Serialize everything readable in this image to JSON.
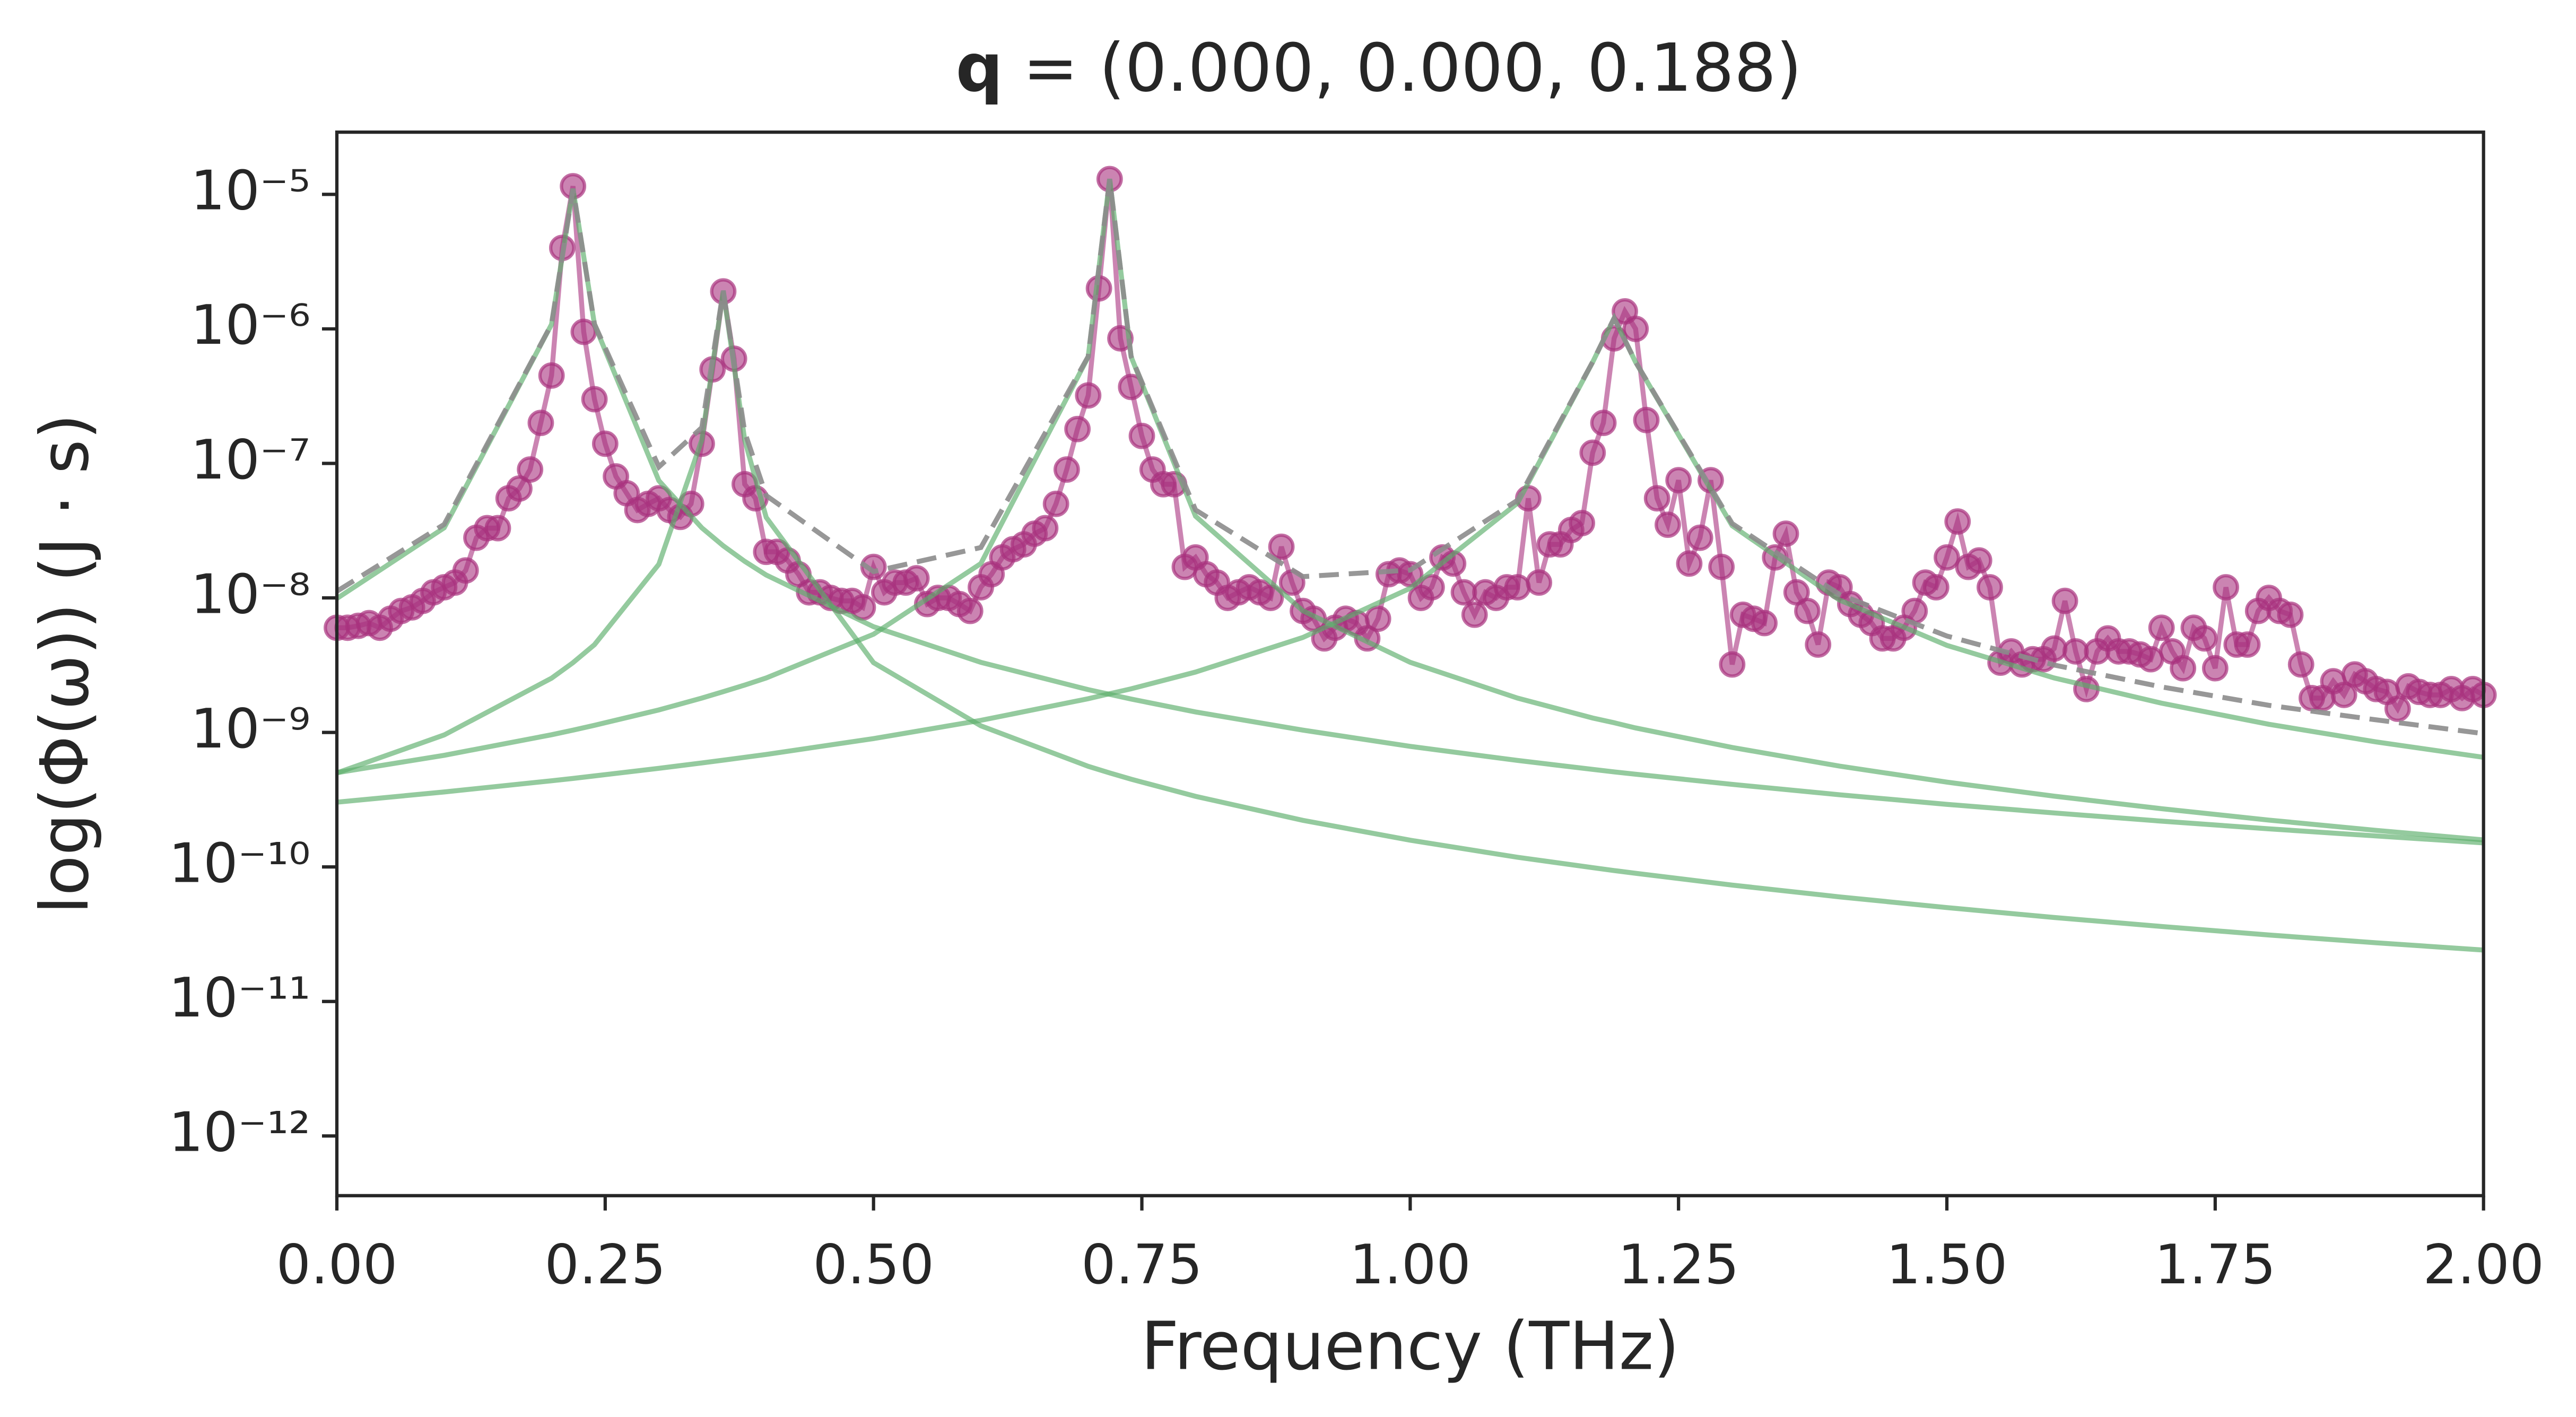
{
  "chart_data": {
    "type": "line",
    "title_symbol": "q",
    "title": "= (0.000, 0.000, 0.188)",
    "x_label": "Frequency (THz)",
    "y_label": "log(Φ(ω)) (J · s)",
    "y_scale": "log",
    "grid": false,
    "xlim": [
      0,
      2
    ],
    "ylim": [
      3.6e-13,
      2.9e-05
    ],
    "xticks": [
      {
        "value": 0,
        "label": "0.00"
      },
      {
        "value": 0.25,
        "label": "0.25"
      },
      {
        "value": 0.5,
        "label": "0.50"
      },
      {
        "value": 0.75,
        "label": "0.75"
      },
      {
        "value": 1,
        "label": "1.00"
      },
      {
        "value": 1.25,
        "label": "1.25"
      },
      {
        "value": 1.5,
        "label": "1.50"
      },
      {
        "value": 1.75,
        "label": "1.75"
      },
      {
        "value": 2,
        "label": "2.00"
      }
    ],
    "yticks": [
      {
        "value": 1e-12,
        "label": "10⁻¹²"
      },
      {
        "value": 1e-11,
        "label": "10⁻¹¹"
      },
      {
        "value": 1e-10,
        "label": "10⁻¹⁰"
      },
      {
        "value": 1e-09,
        "label": "10⁻⁹"
      },
      {
        "value": 1e-08,
        "label": "10⁻⁸"
      },
      {
        "value": 1e-07,
        "label": "10⁻⁷"
      },
      {
        "value": 1e-06,
        "label": "10⁻⁶"
      },
      {
        "value": 1e-05,
        "label": "10⁻⁵"
      }
    ],
    "series": [
      {
        "style": "line-markers",
        "color": "#a8327e",
        "x": [
          0,
          0.01,
          0.02,
          0.03,
          0.04,
          0.05,
          0.06,
          0.07,
          0.08,
          0.09,
          0.1,
          0.11,
          0.12,
          0.13,
          0.14,
          0.15,
          0.16,
          0.17,
          0.18,
          0.19,
          0.2,
          0.21,
          0.22,
          0.23,
          0.24,
          0.25,
          0.26,
          0.27,
          0.28,
          0.29,
          0.3,
          0.31,
          0.32,
          0.33,
          0.34,
          0.35,
          0.36,
          0.37,
          0.38,
          0.39,
          0.4,
          0.41,
          0.42,
          0.43,
          0.44,
          0.45,
          0.46,
          0.47,
          0.48,
          0.49,
          0.5,
          0.51,
          0.52,
          0.53,
          0.54,
          0.55,
          0.56,
          0.57,
          0.58,
          0.59,
          0.6,
          0.61,
          0.62,
          0.63,
          0.64,
          0.65,
          0.66,
          0.67,
          0.68,
          0.69,
          0.7,
          0.71,
          0.72,
          0.73,
          0.74,
          0.75,
          0.76,
          0.77,
          0.78,
          0.79,
          0.8,
          0.81,
          0.82,
          0.83,
          0.84,
          0.85,
          0.86,
          0.87,
          0.88,
          0.89,
          0.9,
          0.91,
          0.92,
          0.93,
          0.94,
          0.95,
          0.96,
          0.97,
          0.98,
          0.99,
          1,
          1.01,
          1.02,
          1.03,
          1.04,
          1.05,
          1.06,
          1.07,
          1.08,
          1.09,
          1.1,
          1.11,
          1.12,
          1.13,
          1.14,
          1.15,
          1.16,
          1.17,
          1.18,
          1.19,
          1.2,
          1.21,
          1.22,
          1.23,
          1.24,
          1.25,
          1.26,
          1.27,
          1.28,
          1.29,
          1.3,
          1.31,
          1.32,
          1.33,
          1.34,
          1.35,
          1.36,
          1.37,
          1.38,
          1.39,
          1.4,
          1.41,
          1.42,
          1.43,
          1.44,
          1.45,
          1.46,
          1.47,
          1.48,
          1.49,
          1.5,
          1.51,
          1.52,
          1.53,
          1.54,
          1.55,
          1.56,
          1.57,
          1.58,
          1.59,
          1.6,
          1.61,
          1.62,
          1.63,
          1.64,
          1.65,
          1.66,
          1.67,
          1.68,
          1.69,
          1.7,
          1.71,
          1.72,
          1.73,
          1.74,
          1.75,
          1.76,
          1.77,
          1.78,
          1.79,
          1.8,
          1.81,
          1.82,
          1.83,
          1.84,
          1.85,
          1.86,
          1.87,
          1.88,
          1.89,
          1.9,
          1.91,
          1.92,
          1.93,
          1.94,
          1.95,
          1.96,
          1.97,
          1.98,
          1.99,
          2
        ],
        "values": [
          6e-09,
          6e-09,
          6.2e-09,
          6.5e-09,
          6e-09,
          7e-09,
          8e-09,
          8.5e-09,
          9.5e-09,
          1.1e-08,
          1.2e-08,
          1.3e-08,
          1.6e-08,
          2.8e-08,
          3.3e-08,
          3.3e-08,
          5.5e-08,
          6.5e-08,
          9e-08,
          2e-07,
          4.5e-07,
          4e-06,
          1.15e-05,
          9.5e-07,
          3e-07,
          1.4e-07,
          8e-08,
          6e-08,
          4.5e-08,
          5e-08,
          5.5e-08,
          4.5e-08,
          4e-08,
          5e-08,
          1.4e-07,
          5e-07,
          1.9e-06,
          6e-07,
          7e-08,
          5.5e-08,
          2.2e-08,
          2.2e-08,
          1.9e-08,
          1.5e-08,
          1.1e-08,
          1.1e-08,
          1e-08,
          9.5e-09,
          9.5e-09,
          8.5e-09,
          1.7e-08,
          1.1e-08,
          1.3e-08,
          1.3e-08,
          1.4e-08,
          9e-09,
          1e-08,
          1e-08,
          9e-09,
          8e-09,
          1.2e-08,
          1.5e-08,
          2e-08,
          2.3e-08,
          2.5e-08,
          3e-08,
          3.3e-08,
          5e-08,
          9e-08,
          1.8e-07,
          3.2e-07,
          2e-06,
          1.3e-05,
          8.5e-07,
          3.7e-07,
          1.6e-07,
          9e-08,
          7e-08,
          7e-08,
          1.7e-08,
          2e-08,
          1.5e-08,
          1.3e-08,
          1e-08,
          1.1e-08,
          1.2e-08,
          1.1e-08,
          1e-08,
          2.4e-08,
          1.3e-08,
          8e-09,
          7e-09,
          5e-09,
          6e-09,
          7e-09,
          6.5e-09,
          5e-09,
          7e-09,
          1.5e-08,
          1.6e-08,
          1.5e-08,
          1e-08,
          1.2e-08,
          2e-08,
          1.8e-08,
          1.1e-08,
          7.5e-09,
          1.1e-08,
          1e-08,
          1.2e-08,
          1.2e-08,
          5.5e-08,
          1.3e-08,
          2.5e-08,
          2.5e-08,
          3.2e-08,
          3.6e-08,
          1.2e-07,
          2e-07,
          8.5e-07,
          1.35e-06,
          1e-06,
          2.1e-07,
          5.5e-08,
          3.5e-08,
          7.5e-08,
          1.8e-08,
          2.8e-08,
          7.5e-08,
          1.7e-08,
          3.2e-09,
          7.5e-09,
          7e-09,
          6.5e-09,
          2e-08,
          3e-08,
          1.1e-08,
          8e-09,
          4.5e-09,
          1.3e-08,
          1.2e-08,
          9e-09,
          7.5e-09,
          6.5e-09,
          5e-09,
          5e-09,
          6e-09,
          8e-09,
          1.3e-08,
          1.2e-08,
          2e-08,
          3.7e-08,
          1.7e-08,
          1.9e-08,
          1.2e-08,
          3.3e-09,
          4e-09,
          3.2e-09,
          3.5e-09,
          3.5e-09,
          4.2e-09,
          9.5e-09,
          4e-09,
          2.1e-09,
          4e-09,
          5e-09,
          4e-09,
          4e-09,
          3.8e-09,
          3.5e-09,
          6e-09,
          4e-09,
          3e-09,
          6e-09,
          5e-09,
          3e-09,
          1.2e-08,
          4.5e-09,
          4.5e-09,
          8e-09,
          1e-08,
          8e-09,
          7.5e-09,
          3.2e-09,
          1.8e-09,
          1.8e-09,
          2.4e-09,
          1.9e-09,
          2.7e-09,
          2.4e-09,
          2.1e-09,
          2e-09,
          1.5e-09,
          2.2e-09,
          2e-09,
          1.9e-09,
          1.9e-09,
          2.1e-09,
          1.8e-09,
          2.1e-09,
          1.9e-09
        ]
      },
      {
        "style": "line",
        "color": "#5aad6a",
        "x": [
          0,
          0.1,
          0.2,
          0.22,
          0.24,
          0.3,
          0.34,
          0.36,
          0.38,
          0.4,
          0.5,
          0.6,
          0.7,
          0.72,
          0.74,
          0.8,
          0.9,
          1,
          1.1,
          1.17,
          1.19,
          1.21,
          1.3,
          1.4,
          1.5,
          1.6,
          1.7,
          1.8,
          1.9,
          2
        ],
        "values": [
          9.9e-09,
          3.32e-08,
          1.08e-06,
          1.1e-05,
          1.08e-06,
          7.44e-08,
          3.32e-08,
          2.44e-08,
          1.87e-08,
          1.48e-08,
          6.11e-09,
          3.32e-09,
          2.08e-09,
          1.92e-09,
          1.77e-09,
          1.42e-09,
          1.04e-09,
          7.88e-10,
          6.19e-10,
          5.31e-10,
          5.09e-10,
          4.89e-10,
          4.11e-10,
          3.44e-10,
          2.92e-10,
          2.52e-10,
          2.19e-10,
          1.92e-10,
          1.7e-10,
          1.51e-10
        ]
      },
      {
        "style": "line",
        "color": "#5aad6a",
        "x": [
          0,
          0.1,
          0.2,
          0.22,
          0.24,
          0.3,
          0.34,
          0.36,
          0.38,
          0.4,
          0.5,
          0.6,
          0.7,
          0.72,
          0.74,
          0.8,
          0.9,
          1,
          1.1,
          1.17,
          1.19,
          1.21,
          1.3,
          1.4,
          1.5,
          1.6,
          1.7,
          1.8,
          1.9,
          2
        ],
        "values": [
          5e-10,
          9.58e-10,
          2.53e-09,
          3.3e-09,
          4.49e-09,
          1.78e-08,
          1.49e-07,
          1.9e-06,
          1.49e-07,
          3.97e-08,
          3.3e-09,
          1.12e-09,
          5.6e-10,
          5e-10,
          4.49e-10,
          3.35e-10,
          2.22e-10,
          1.58e-10,
          1.18e-10,
          9.88e-11,
          9.4e-11,
          8.97e-11,
          7.33e-11,
          5.99e-11,
          4.99e-11,
          4.21e-11,
          3.61e-11,
          3.12e-11,
          2.73e-11,
          2.41e-11
        ]
      },
      {
        "style": "line",
        "color": "#5aad6a",
        "x": [
          0,
          0.1,
          0.2,
          0.22,
          0.24,
          0.3,
          0.34,
          0.36,
          0.38,
          0.4,
          0.5,
          0.6,
          0.7,
          0.72,
          0.74,
          0.8,
          0.9,
          1,
          1.1,
          1.17,
          1.19,
          1.21,
          1.3,
          1.4,
          1.5,
          1.6,
          1.7,
          1.8,
          1.9,
          2
        ],
        "values": [
          5.02e-10,
          6.76e-10,
          9.61e-10,
          1.04e-09,
          1.13e-09,
          1.47e-09,
          1.8e-09,
          2.01e-09,
          2.25e-09,
          2.54e-09,
          5.37e-09,
          1.8e-08,
          6.19e-07,
          1.3e-05,
          6.19e-07,
          4.05e-08,
          8.02e-09,
          3.32e-09,
          1.8e-09,
          1.28e-09,
          1.18e-09,
          1.08e-09,
          7.73e-10,
          5.62e-10,
          4.27e-10,
          3.36e-10,
          2.71e-10,
          2.23e-10,
          1.87e-10,
          1.59e-10
        ]
      },
      {
        "style": "line",
        "color": "#5aad6a",
        "x": [
          0,
          0.1,
          0.2,
          0.22,
          0.24,
          0.3,
          0.34,
          0.36,
          0.38,
          0.4,
          0.5,
          0.6,
          0.7,
          0.72,
          0.74,
          0.8,
          0.9,
          1,
          1.1,
          1.17,
          1.19,
          1.21,
          1.3,
          1.4,
          1.5,
          1.6,
          1.7,
          1.8,
          1.9,
          2
        ],
        "values": [
          3.03e-10,
          3.61e-10,
          4.37e-10,
          4.55e-10,
          4.75e-10,
          5.41e-10,
          5.93e-10,
          6.22e-10,
          6.53e-10,
          6.86e-10,
          9e-10,
          1.23e-09,
          1.78e-09,
          1.94e-09,
          2.11e-09,
          2.81e-09,
          5.08e-09,
          1.18e-08,
          5.07e-08,
          5.66e-07,
          1.2e-06,
          5.66e-07,
          3.44e-08,
          9.64e-09,
          4.44e-09,
          2.54e-09,
          1.65e-09,
          1.15e-09,
          8.5e-10,
          6.53e-10
        ]
      },
      {
        "style": "dashed",
        "color": "#8c8c8c",
        "x": [
          0,
          0.1,
          0.2,
          0.22,
          0.24,
          0.3,
          0.34,
          0.36,
          0.38,
          0.4,
          0.5,
          0.6,
          0.7,
          0.72,
          0.74,
          0.8,
          0.9,
          1,
          1.1,
          1.17,
          1.19,
          1.21,
          1.3,
          1.4,
          1.5,
          1.6,
          1.7,
          1.8,
          1.9,
          2
        ],
        "values": [
          1.12e-08,
          3.52e-08,
          1.084e-06,
          1.1e-05,
          1.086e-06,
          9.42e-08,
          1.846e-07,
          1.927e-06,
          1.706e-07,
          5.77e-08,
          1.57e-08,
          2.37e-08,
          6.23e-07,
          1.3e-05,
          6.23e-07,
          4.51e-08,
          1.44e-08,
          1.61e-08,
          5.32e-08,
          5.68e-07,
          1.202e-06,
          5.68e-07,
          3.57e-08,
          1.06e-08,
          5.21e-09,
          3.17e-09,
          2.18e-09,
          1.59e-09,
          1.24e-09,
          9.8e-10
        ]
      }
    ]
  }
}
